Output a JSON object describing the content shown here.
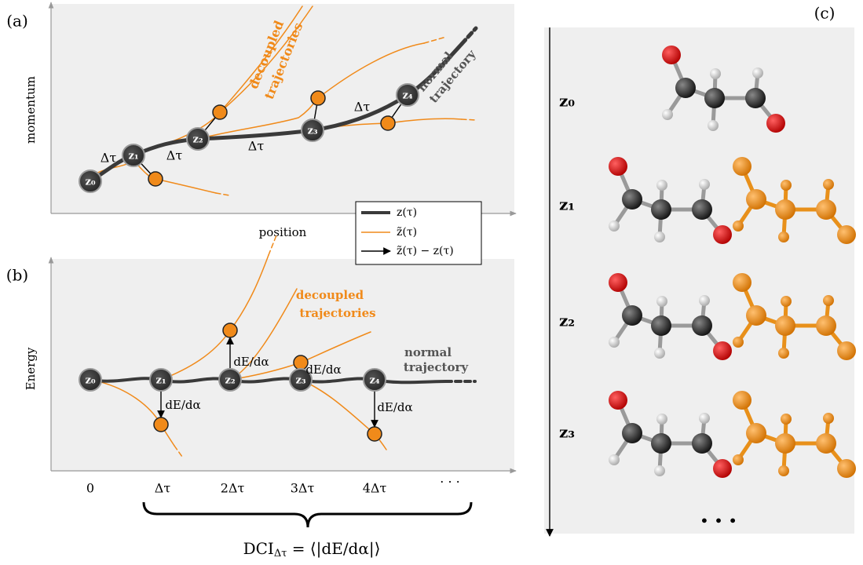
{
  "panel_a": {
    "label": "(a)",
    "y_label": "momentum",
    "x_label": "position",
    "nodes": [
      "z₀",
      "z₁",
      "z₂",
      "z₃",
      "z₄"
    ],
    "step_labels": [
      "Δτ",
      "Δτ",
      "Δτ",
      "Δτ"
    ],
    "decoupled_label": [
      "decoupled",
      "trajectories"
    ],
    "normal_label": [
      "normal",
      "trajectory"
    ]
  },
  "legend": [
    "z(τ)",
    "z̃(τ)",
    "z̃(τ) − z(τ)"
  ],
  "panel_b": {
    "label": "(b)",
    "y_label": "Energy",
    "nodes": [
      "z₀",
      "z₁",
      "z₂",
      "z₃",
      "z₄"
    ],
    "differences": [
      "dE/dα",
      "dE/dα",
      "dE/dα",
      "dE/dα"
    ],
    "decoupled_label": [
      "decoupled",
      "trajectories"
    ],
    "normal_label": [
      "normal",
      "trajectory"
    ],
    "x_ticks": [
      "0",
      "Δτ",
      "2Δτ",
      "3Δτ",
      "4Δτ",
      "· · ·"
    ],
    "formula": [
      "DCI",
      "Δτ",
      " = ⟨|dE/dα|⟩"
    ]
  },
  "panel_c": {
    "label": "(c)",
    "frames": [
      "z₀",
      "z₁",
      "z₂",
      "z₃"
    ],
    "ellipsis": "• • •"
  }
}
